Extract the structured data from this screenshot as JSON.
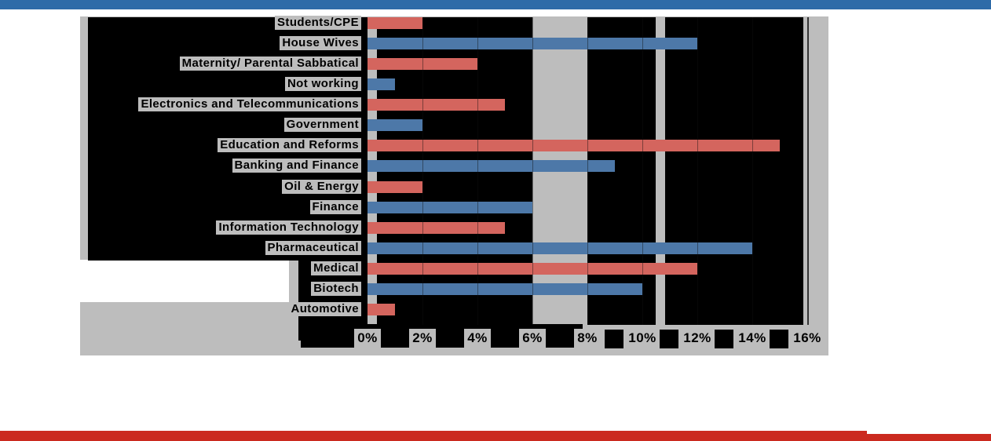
{
  "accents": {
    "top_bar_color": "#2e6ba8",
    "bottom_bar_color": "#cb2a1f",
    "panel_color": "#bdbdbd",
    "plot_background_color": "#000000"
  },
  "chart_data": {
    "type": "bar",
    "orientation": "horizontal",
    "categories": [
      "Students/CPE",
      "House Wives",
      "Maternity/ Parental Sabbatical",
      "Not working",
      "Electronics and Telecommunications",
      "Government",
      "Education and Reforms",
      "Banking and Finance",
      "Oil & Energy",
      "Finance",
      "Information Technology",
      "Pharmaceutical",
      "Medical",
      "Biotech",
      "Automotive"
    ],
    "values": [
      2,
      12,
      4,
      1,
      5,
      2,
      15,
      9,
      2,
      6,
      5,
      14,
      12,
      10,
      1
    ],
    "value_unit": "%",
    "bar_color_pattern": [
      "#d4655e",
      "#4d78a8"
    ],
    "x_tick_labels": [
      "0%",
      "2%",
      "4%",
      "6%",
      "8%",
      "10%",
      "12%",
      "14%",
      "16%"
    ],
    "xlim": [
      0,
      16
    ],
    "grid": true,
    "legend": false,
    "title": ""
  }
}
